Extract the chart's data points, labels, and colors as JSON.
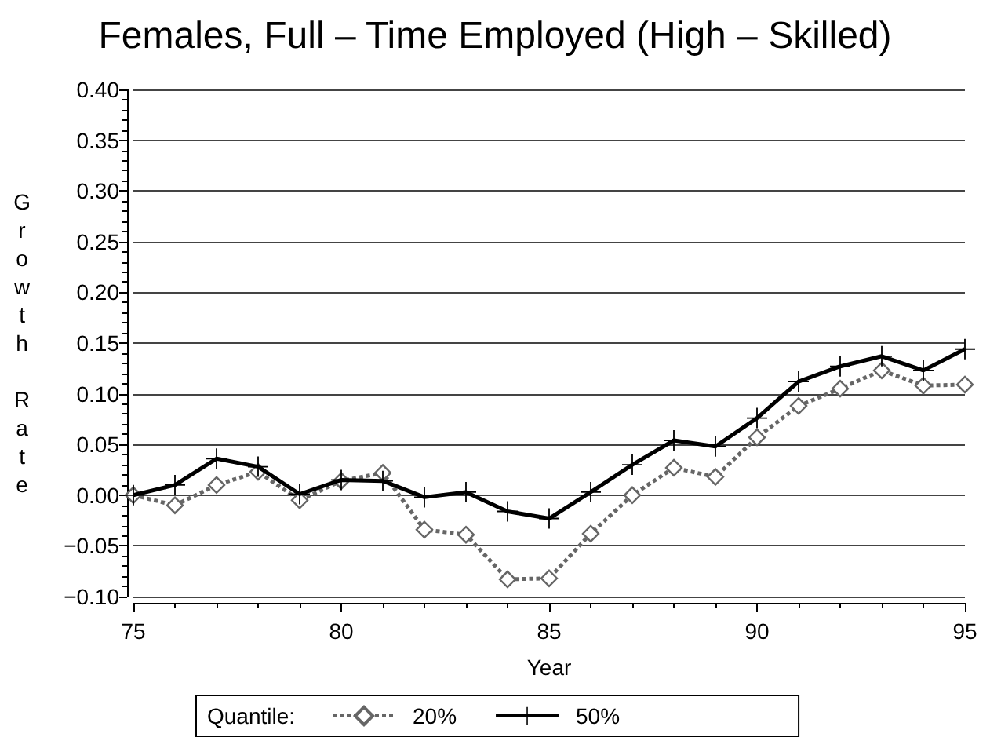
{
  "chart_data": {
    "type": "line",
    "title": "Females, Full – Time Employed (High – Skilled)",
    "xlabel": "Year",
    "ylabel": "Growth Rate",
    "legend_title": "Quantile:",
    "x": [
      75,
      76,
      77,
      78,
      79,
      80,
      81,
      82,
      83,
      84,
      85,
      86,
      87,
      88,
      89,
      90,
      91,
      92,
      93,
      94,
      95
    ],
    "series": [
      {
        "name": "20%",
        "color": "#666666",
        "marker": "diamond",
        "line_style": "dotted",
        "values": [
          0.0,
          -0.01,
          0.01,
          0.023,
          -0.005,
          0.014,
          0.022,
          -0.034,
          -0.039,
          -0.083,
          -0.082,
          -0.038,
          0.0,
          0.027,
          0.018,
          0.057,
          0.088,
          0.105,
          0.123,
          0.108,
          0.109
        ]
      },
      {
        "name": "50%",
        "color": "#000000",
        "marker": "cross",
        "line_style": "solid",
        "values": [
          0.0,
          0.01,
          0.036,
          0.028,
          0.001,
          0.015,
          0.014,
          -0.002,
          0.003,
          -0.016,
          -0.023,
          0.003,
          0.03,
          0.054,
          0.048,
          0.076,
          0.112,
          0.127,
          0.137,
          0.123,
          0.144
        ]
      }
    ],
    "xlim": [
      75,
      95
    ],
    "xticks": [
      75,
      80,
      85,
      90,
      95
    ],
    "ylim": [
      -0.1,
      0.4
    ],
    "yticks": [
      {
        "value": -0.1,
        "label": "−0.10"
      },
      {
        "value": -0.05,
        "label": "−0.05"
      },
      {
        "value": 0,
        "label": "0.00"
      },
      {
        "value": 0.05,
        "label": "0.05"
      },
      {
        "value": 0.1,
        "label": "0.10"
      },
      {
        "value": 0.15,
        "label": "0.15"
      },
      {
        "value": 0.2,
        "label": "0.20"
      },
      {
        "value": 0.25,
        "label": "0.25"
      },
      {
        "value": 0.3,
        "label": "0.30"
      },
      {
        "value": 0.35,
        "label": "0.35"
      },
      {
        "value": 0.4,
        "label": "0.40"
      }
    ],
    "grid": "y",
    "legend": "bottom"
  }
}
